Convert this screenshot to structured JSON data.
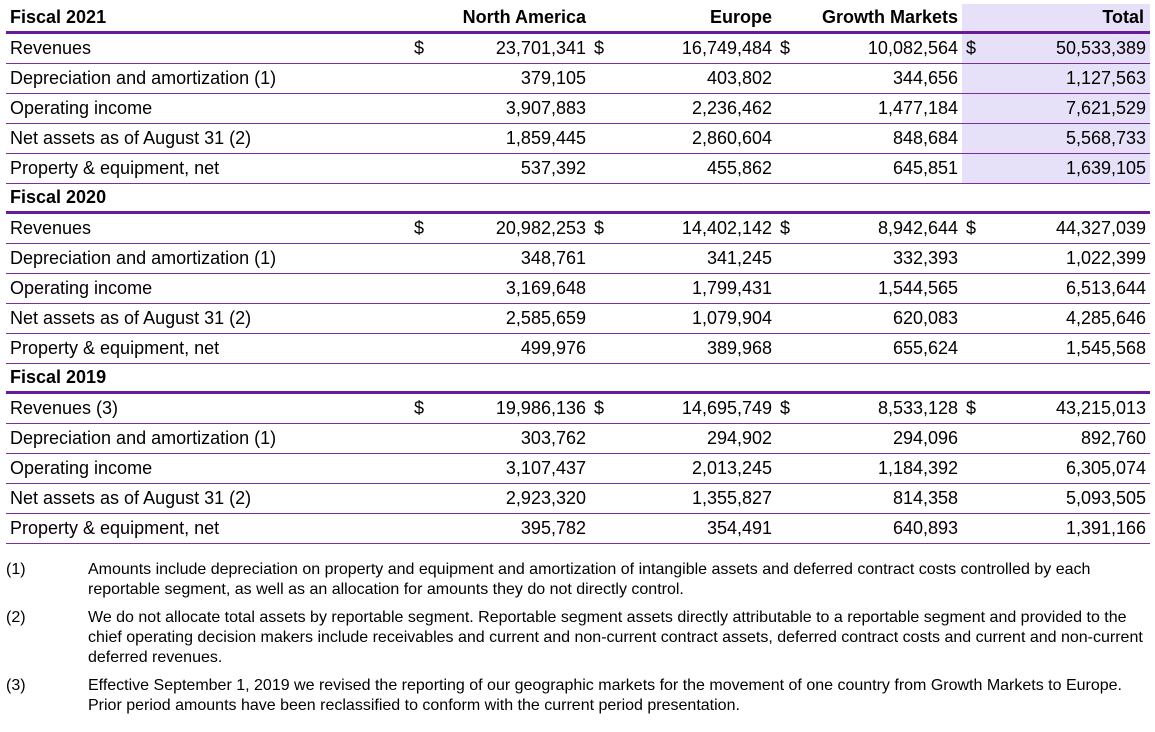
{
  "header": {
    "columns": [
      "North America",
      "Europe",
      "Growth Markets",
      "Total"
    ]
  },
  "currency_symbol": "$",
  "sections": [
    {
      "title": "Fiscal 2021",
      "rows": [
        {
          "label": "Revenues",
          "values": [
            "23,701,341",
            "16,749,484",
            "10,082,564",
            "50,533,389"
          ],
          "dollar": true
        },
        {
          "label": "Depreciation and amortization (1)",
          "values": [
            "379,105",
            "403,802",
            "344,656",
            "1,127,563"
          ],
          "dollar": false
        },
        {
          "label": "Operating income",
          "values": [
            "3,907,883",
            "2,236,462",
            "1,477,184",
            "7,621,529"
          ],
          "dollar": false
        },
        {
          "label": "Net assets as of August 31 (2)",
          "values": [
            "1,859,445",
            "2,860,604",
            "848,684",
            "5,568,733"
          ],
          "dollar": false
        },
        {
          "label": "Property & equipment, net",
          "values": [
            "537,392",
            "455,862",
            "645,851",
            "1,639,105"
          ],
          "dollar": false
        }
      ]
    },
    {
      "title": "Fiscal 2020",
      "rows": [
        {
          "label": "Revenues",
          "values": [
            "20,982,253",
            "14,402,142",
            "8,942,644",
            "44,327,039"
          ],
          "dollar": true
        },
        {
          "label": "Depreciation and amortization (1)",
          "values": [
            "348,761",
            "341,245",
            "332,393",
            "1,022,399"
          ],
          "dollar": false
        },
        {
          "label": "Operating income",
          "values": [
            "3,169,648",
            "1,799,431",
            "1,544,565",
            "6,513,644"
          ],
          "dollar": false
        },
        {
          "label": "Net assets as of August 31 (2)",
          "values": [
            "2,585,659",
            "1,079,904",
            "620,083",
            "4,285,646"
          ],
          "dollar": false
        },
        {
          "label": "Property & equipment, net",
          "values": [
            "499,976",
            "389,968",
            "655,624",
            "1,545,568"
          ],
          "dollar": false
        }
      ]
    },
    {
      "title": "Fiscal 2019",
      "rows": [
        {
          "label": "Revenues (3)",
          "values": [
            "19,986,136",
            "14,695,749",
            "8,533,128",
            "43,215,013"
          ],
          "dollar": true
        },
        {
          "label": "Depreciation and amortization (1)",
          "values": [
            "303,762",
            "294,902",
            "294,096",
            "892,760"
          ],
          "dollar": false
        },
        {
          "label": "Operating income",
          "values": [
            "3,107,437",
            "2,013,245",
            "1,184,392",
            "6,305,074"
          ],
          "dollar": false
        },
        {
          "label": "Net assets as of August 31 (2)",
          "values": [
            "2,923,320",
            "1,355,827",
            "814,358",
            "5,093,505"
          ],
          "dollar": false
        },
        {
          "label": "Property & equipment, net",
          "values": [
            "395,782",
            "354,491",
            "640,893",
            "1,391,166"
          ],
          "dollar": false
        }
      ]
    }
  ],
  "footnotes": [
    {
      "num": "(1)",
      "text": "Amounts include depreciation on property and equipment and amortization of intangible assets and deferred contract costs controlled by each reportable segment, as well as an allocation for amounts they do not directly control."
    },
    {
      "num": "(2)",
      "text": "We do not allocate total assets by reportable segment. Reportable segment assets directly attributable to a reportable segment and provided to the chief operating decision makers include receivables and current and non-current contract assets, deferred contract costs and current and non-current deferred revenues."
    },
    {
      "num": "(3)",
      "text": "Effective September 1, 2019 we revised the reporting of our geographic markets for the movement of one country from Growth Markets to Europe. Prior period amounts have been reclassified to conform with the current period presentation."
    }
  ],
  "colors": {
    "accent_rule": "#6a1b9a",
    "total_highlight": "#e6e0f8"
  }
}
